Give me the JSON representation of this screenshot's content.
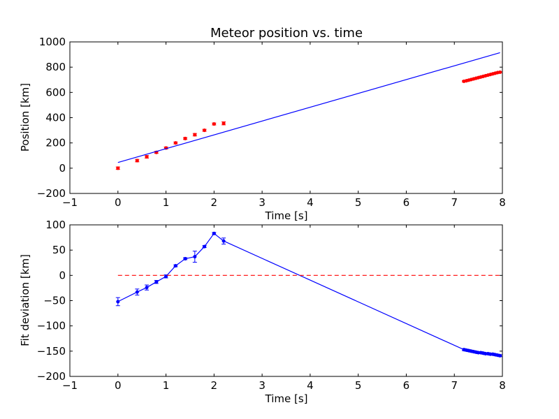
{
  "chart_data": [
    {
      "type": "scatter",
      "title": "Meteor position vs. time",
      "xlabel": "Time [s]",
      "ylabel": "Position [km]",
      "xlim": [
        -1,
        8
      ],
      "ylim": [
        -200,
        1000
      ],
      "xticks": [
        "−1",
        "0",
        "1",
        "2",
        "3",
        "4",
        "5",
        "6",
        "7",
        "8"
      ],
      "yticks": [
        "−200",
        "0",
        "200",
        "400",
        "600",
        "800",
        "1000"
      ],
      "grid": false,
      "series": [
        {
          "kind": "points-with-errorbars",
          "color": "#ff0000",
          "x": [
            0,
            0.4,
            0.6,
            0.8,
            1.0,
            1.2,
            1.4,
            1.6,
            1.8,
            2.0,
            2.2,
            7.2,
            7.25,
            7.3,
            7.35,
            7.4,
            7.45,
            7.5,
            7.55,
            7.6,
            7.65,
            7.7,
            7.75,
            7.8,
            7.85,
            7.9,
            7.95
          ],
          "y": [
            0,
            60,
            90,
            125,
            160,
            200,
            235,
            265,
            300,
            350,
            355,
            688,
            692,
            697,
            702,
            707,
            712,
            717,
            722,
            727,
            732,
            737,
            742,
            747,
            752,
            757,
            760
          ],
          "yerr": [
            10,
            10,
            10,
            8,
            8,
            8,
            8,
            10,
            8,
            8,
            12,
            6,
            6,
            6,
            6,
            6,
            6,
            6,
            6,
            6,
            6,
            6,
            6,
            6,
            6,
            6,
            6
          ]
        },
        {
          "kind": "line",
          "color": "#0000ff",
          "x": [
            0,
            7.95
          ],
          "y": [
            45,
            915
          ]
        }
      ]
    },
    {
      "type": "line",
      "title": "",
      "xlabel": "Time [s]",
      "ylabel": "Fit deviation [km]",
      "xlim": [
        -1,
        8
      ],
      "ylim": [
        -200,
        100
      ],
      "xticks": [
        "−1",
        "0",
        "1",
        "2",
        "3",
        "4",
        "5",
        "6",
        "7",
        "8"
      ],
      "yticks": [
        "−200",
        "−150",
        "−100",
        "−50",
        "0",
        "50",
        "100"
      ],
      "grid": false,
      "series": [
        {
          "kind": "line-with-errorbars",
          "color": "#0000ff",
          "x": [
            0,
            0.4,
            0.6,
            0.8,
            1.0,
            1.2,
            1.4,
            1.6,
            1.8,
            2.0,
            2.2,
            7.2,
            7.25,
            7.3,
            7.35,
            7.4,
            7.45,
            7.5,
            7.55,
            7.6,
            7.65,
            7.7,
            7.75,
            7.8,
            7.85,
            7.9,
            7.95
          ],
          "y": [
            -52,
            -33,
            -24,
            -13,
            -2,
            19,
            33,
            37,
            57,
            83,
            68,
            -147,
            -148,
            -149,
            -150,
            -151,
            -152,
            -153,
            -153,
            -154,
            -155,
            -155,
            -156,
            -156,
            -157,
            -158,
            -159
          ],
          "yerr": [
            8,
            6,
            5,
            3,
            3,
            2,
            2,
            11,
            2,
            2,
            6,
            2,
            2,
            2,
            2,
            2,
            2,
            2,
            2,
            2,
            2,
            2,
            2,
            2,
            2,
            2,
            2
          ]
        },
        {
          "kind": "dashed-line",
          "color": "#ff0000",
          "x": [
            0,
            8
          ],
          "y": [
            0,
            0
          ]
        }
      ]
    }
  ]
}
